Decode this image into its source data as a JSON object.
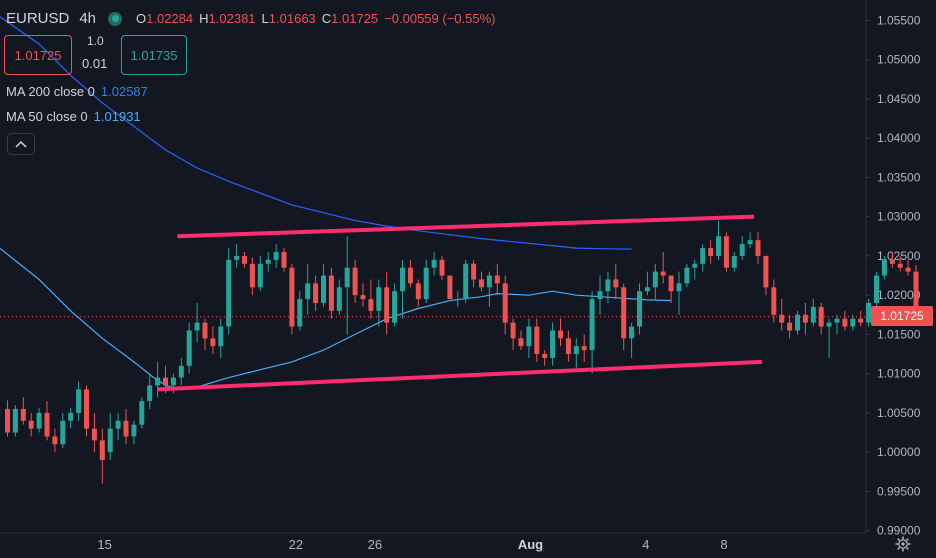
{
  "legend": {
    "symbol": "EURUSD",
    "timeframe": "4h",
    "open_key": "O",
    "open": "1.02284",
    "high_key": "H",
    "high": "1.02381",
    "low_key": "L",
    "low": "1.01663",
    "close_key": "C",
    "close": "1.01725",
    "change": "−0.00559 (−0.55%)"
  },
  "trade": {
    "sell_price": "1.01725",
    "buy_price": "1.01735",
    "quantity": "1.0",
    "step": "0.01"
  },
  "indicators": {
    "ma200_label": "MA 200 close 0",
    "ma200_value": "1.02587",
    "ma50_label": "MA 50 close 0",
    "ma50_value": "1.01931"
  },
  "collapse_icon": "chevron-up-icon",
  "colors": {
    "background": "#131722",
    "up": "#26a69a",
    "down": "#ef5350",
    "ma200": "#2962ff",
    "ma50": "#4dabf7",
    "channel": "#ff2d6f",
    "axis_text": "#b2b5be"
  },
  "chart_data": {
    "type": "candlestick",
    "instrument": "EURUSD",
    "interval": "4h",
    "ylim": [
      0.9897,
      1.0576
    ],
    "y_ticks": [
      "1.05500",
      "1.05000",
      "1.04500",
      "1.04000",
      "1.03500",
      "1.03000",
      "1.02500",
      "1.02000",
      "1.01500",
      "1.01000",
      "1.00500",
      "1.00000",
      "0.99500",
      "0.99000"
    ],
    "x_ticks": [
      "15",
      "22",
      "26",
      "Aug",
      "4",
      "8"
    ],
    "x_tick_index": {
      "15": 12.3,
      "22": 36.5,
      "26": 46.5,
      "Aug": 66.2,
      "4": 80.8,
      "8": 90.7
    },
    "x_tick_bold": [
      "Aug"
    ],
    "last_price": "1.01725",
    "candles": [
      [
        1.0055,
        1.0066,
        1.002,
        1.0025
      ],
      [
        1.0025,
        1.006,
        1.002,
        1.0055
      ],
      [
        1.0055,
        1.007,
        1.0035,
        1.004
      ],
      [
        1.004,
        1.005,
        1.002,
        1.003
      ],
      [
        1.003,
        1.0056,
        1.0025,
        1.005
      ],
      [
        1.005,
        1.0065,
        1.0015,
        1.002
      ],
      [
        1.002,
        1.003,
        1.0,
        1.001
      ],
      [
        1.001,
        1.005,
        1.0005,
        1.004
      ],
      [
        1.004,
        1.0056,
        1.003,
        1.005
      ],
      [
        1.005,
        1.009,
        1.004,
        1.008
      ],
      [
        1.008,
        1.0085,
        1.002,
        1.003
      ],
      [
        1.003,
        1.005,
        1.0,
        1.0015
      ],
      [
        1.0015,
        1.003,
        0.996,
        0.999
      ],
      [
        1.0,
        1.005,
        0.999,
        1.003
      ],
      [
        1.003,
        1.005,
        1.0015,
        1.004
      ],
      [
        1.004,
        1.0055,
        1.001,
        1.002
      ],
      [
        1.002,
        1.004,
        1.001,
        1.0035
      ],
      [
        1.0035,
        1.007,
        1.003,
        1.0065
      ],
      [
        1.0065,
        1.01,
        1.0055,
        1.0085
      ],
      [
        1.0085,
        1.0115,
        1.007,
        1.0095
      ],
      [
        1.0095,
        1.011,
        1.0075,
        1.0085
      ],
      [
        1.0085,
        1.01,
        1.0075,
        1.0095
      ],
      [
        1.0095,
        1.012,
        1.0085,
        1.011
      ],
      [
        1.011,
        1.0165,
        1.01,
        1.0155
      ],
      [
        1.0155,
        1.019,
        1.014,
        1.0165
      ],
      [
        1.0165,
        1.017,
        1.013,
        1.0145
      ],
      [
        1.0145,
        1.016,
        1.0125,
        1.0135
      ],
      [
        1.0135,
        1.017,
        1.012,
        1.016
      ],
      [
        1.016,
        1.026,
        1.015,
        1.0245
      ],
      [
        1.0245,
        1.0265,
        1.0235,
        1.025
      ],
      [
        1.025,
        1.0255,
        1.0235,
        1.024
      ],
      [
        1.024,
        1.0248,
        1.02,
        1.021
      ],
      [
        1.021,
        1.025,
        1.0205,
        1.024
      ],
      [
        1.024,
        1.0255,
        1.023,
        1.0245
      ],
      [
        1.0245,
        1.0265,
        1.0235,
        1.0255
      ],
      [
        1.0255,
        1.026,
        1.023,
        1.0235
      ],
      [
        1.0235,
        1.024,
        1.015,
        1.016
      ],
      [
        1.016,
        1.0205,
        1.0155,
        1.0195
      ],
      [
        1.0195,
        1.024,
        1.0175,
        1.0215
      ],
      [
        1.0215,
        1.0225,
        1.018,
        1.019
      ],
      [
        1.019,
        1.024,
        1.0185,
        1.0225
      ],
      [
        1.0225,
        1.0235,
        1.017,
        1.018
      ],
      [
        1.018,
        1.022,
        1.0175,
        1.021
      ],
      [
        1.021,
        1.0275,
        1.015,
        1.0235
      ],
      [
        1.0235,
        1.0245,
        1.019,
        1.02
      ],
      [
        1.02,
        1.0215,
        1.0185,
        1.0195
      ],
      [
        1.0195,
        1.022,
        1.017,
        1.018
      ],
      [
        1.018,
        1.022,
        1.016,
        1.021
      ],
      [
        1.021,
        1.023,
        1.015,
        1.0165
      ],
      [
        1.0165,
        1.0215,
        1.016,
        1.0205
      ],
      [
        1.0205,
        1.0245,
        1.017,
        1.0235
      ],
      [
        1.0235,
        1.0245,
        1.021,
        1.0215
      ],
      [
        1.0215,
        1.022,
        1.0185,
        1.0195
      ],
      [
        1.0195,
        1.0245,
        1.019,
        1.0235
      ],
      [
        1.0235,
        1.0255,
        1.0225,
        1.0245
      ],
      [
        1.0245,
        1.025,
        1.022,
        1.0225
      ],
      [
        1.0225,
        1.0225,
        1.0195,
        1.0195
      ],
      [
        1.0195,
        1.0205,
        1.0185,
        1.0195
      ],
      [
        1.0195,
        1.0245,
        1.019,
        1.024
      ],
      [
        1.024,
        1.0245,
        1.021,
        1.022
      ],
      [
        1.022,
        1.023,
        1.0205,
        1.021
      ],
      [
        1.021,
        1.023,
        1.0185,
        1.0225
      ],
      [
        1.0225,
        1.024,
        1.02,
        1.0215
      ],
      [
        1.0215,
        1.0225,
        1.015,
        1.0165
      ],
      [
        1.0165,
        1.017,
        1.013,
        1.0145
      ],
      [
        1.0145,
        1.0155,
        1.013,
        1.0135
      ],
      [
        1.0135,
        1.017,
        1.012,
        1.016
      ],
      [
        1.016,
        1.017,
        1.0115,
        1.0125
      ],
      [
        1.0125,
        1.013,
        1.011,
        1.012
      ],
      [
        1.012,
        1.0165,
        1.011,
        1.0155
      ],
      [
        1.0155,
        1.017,
        1.0135,
        1.0145
      ],
      [
        1.0145,
        1.0155,
        1.0115,
        1.0125
      ],
      [
        1.0125,
        1.0145,
        1.0105,
        1.0135
      ],
      [
        1.0135,
        1.015,
        1.0115,
        1.013
      ],
      [
        1.013,
        1.0205,
        1.01,
        1.0195
      ],
      [
        1.0195,
        1.0225,
        1.0175,
        1.0205
      ],
      [
        1.0205,
        1.023,
        1.019,
        1.022
      ],
      [
        1.022,
        1.024,
        1.0195,
        1.021
      ],
      [
        1.021,
        1.0215,
        1.013,
        1.0145
      ],
      [
        1.0145,
        1.0165,
        1.012,
        1.016
      ],
      [
        1.016,
        1.0215,
        1.015,
        1.0205
      ],
      [
        1.0205,
        1.023,
        1.02,
        1.021
      ],
      [
        1.021,
        1.024,
        1.0195,
        1.023
      ],
      [
        1.023,
        1.0255,
        1.0215,
        1.0225
      ],
      [
        1.0225,
        1.0225,
        1.019,
        1.0205
      ],
      [
        1.0205,
        1.023,
        1.0175,
        1.0215
      ],
      [
        1.0215,
        1.024,
        1.021,
        1.0235
      ],
      [
        1.0235,
        1.0245,
        1.022,
        1.024
      ],
      [
        1.024,
        1.0265,
        1.023,
        1.026
      ],
      [
        1.026,
        1.027,
        1.024,
        1.025
      ],
      [
        1.025,
        1.0295,
        1.0245,
        1.0275
      ],
      [
        1.0275,
        1.028,
        1.023,
        1.0235
      ],
      [
        1.0235,
        1.0255,
        1.023,
        1.025
      ],
      [
        1.025,
        1.0275,
        1.0245,
        1.0265
      ],
      [
        1.0265,
        1.028,
        1.026,
        1.027
      ],
      [
        1.027,
        1.028,
        1.024,
        1.025
      ],
      [
        1.025,
        1.025,
        1.02,
        1.021
      ],
      [
        1.021,
        1.022,
        1.0165,
        1.0175
      ],
      [
        1.0175,
        1.0195,
        1.0155,
        1.0165
      ],
      [
        1.0165,
        1.0175,
        1.0145,
        1.0155
      ],
      [
        1.0155,
        1.018,
        1.015,
        1.0175
      ],
      [
        1.0175,
        1.019,
        1.015,
        1.0165
      ],
      [
        1.0165,
        1.0195,
        1.016,
        1.0185
      ],
      [
        1.0185,
        1.019,
        1.015,
        1.016
      ],
      [
        1.016,
        1.017,
        1.012,
        1.0165
      ],
      [
        1.0165,
        1.0175,
        1.015,
        1.017
      ],
      [
        1.017,
        1.018,
        1.0155,
        1.016
      ],
      [
        1.016,
        1.0175,
        1.0155,
        1.017
      ],
      [
        1.017,
        1.018,
        1.016,
        1.0165
      ],
      [
        1.0165,
        1.0195,
        1.016,
        1.019
      ],
      [
        1.019,
        1.023,
        1.0185,
        1.0225
      ],
      [
        1.0225,
        1.025,
        1.022,
        1.0245
      ],
      [
        1.0245,
        1.0255,
        1.0235,
        1.024
      ],
      [
        1.024,
        1.025,
        1.023,
        1.0235
      ],
      [
        1.0235,
        1.0245,
        1.0225,
        1.023
      ],
      [
        1.023,
        1.02381,
        1.01663,
        1.01725
      ]
    ],
    "ma50": [
      [
        -1,
        1.026
      ],
      [
        4,
        1.022
      ],
      [
        8,
        1.018
      ],
      [
        12,
        1.0145
      ],
      [
        16,
        1.0115
      ],
      [
        18.5,
        1.0095
      ],
      [
        20,
        1.0085
      ],
      [
        22,
        1.008
      ],
      [
        24,
        1.0083
      ],
      [
        28,
        1.0095
      ],
      [
        32,
        1.0105
      ],
      [
        36,
        1.0115
      ],
      [
        40,
        1.013
      ],
      [
        44,
        1.015
      ],
      [
        48,
        1.017
      ],
      [
        52,
        1.0183
      ],
      [
        56,
        1.0193
      ],
      [
        60,
        1.0198
      ],
      [
        62,
        1.0202
      ],
      [
        66,
        1.02
      ],
      [
        69,
        1.0205
      ],
      [
        72,
        1.02
      ],
      [
        75,
        1.0198
      ],
      [
        78,
        1.0196
      ],
      [
        81,
        1.0194
      ],
      [
        84,
        1.01931
      ]
    ],
    "ma200": [
      [
        -1,
        1.0555
      ],
      [
        4,
        1.052
      ],
      [
        8,
        1.048
      ],
      [
        12,
        1.0445
      ],
      [
        16,
        1.0415
      ],
      [
        20,
        1.0385
      ],
      [
        24,
        1.0362
      ],
      [
        28,
        1.0345
      ],
      [
        32,
        1.033
      ],
      [
        36,
        1.0315
      ],
      [
        40,
        1.0305
      ],
      [
        44,
        1.0295
      ],
      [
        48,
        1.0288
      ],
      [
        52,
        1.0282
      ],
      [
        56,
        1.0277
      ],
      [
        60,
        1.0272
      ],
      [
        64,
        1.0268
      ],
      [
        68,
        1.0264
      ],
      [
        72,
        1.026
      ],
      [
        76,
        1.0259
      ],
      [
        79,
        1.02587
      ]
    ],
    "channel_upper": [
      [
        21.5,
        1.0275
      ],
      [
        94.5,
        1.03
      ]
    ],
    "channel_lower": [
      [
        19,
        1.008
      ],
      [
        95.5,
        1.0115
      ]
    ]
  }
}
